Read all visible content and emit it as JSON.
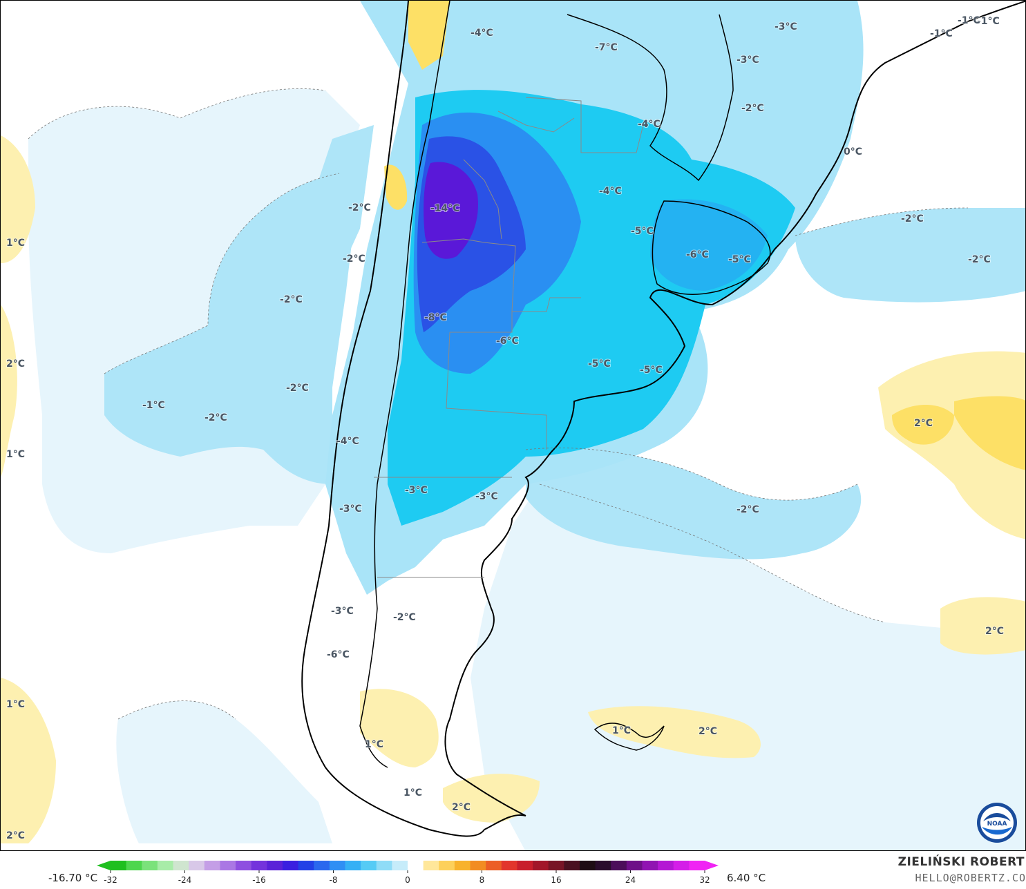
{
  "map": {
    "temperature_labels": [
      "-1°C",
      "-1°C",
      "-4°C",
      "-7°C",
      "-3°C",
      "-3°C",
      "-1°C",
      "-2°C",
      "-4°C",
      "0°C",
      "-14°C",
      "-2°C",
      "-2°C",
      "-4°C",
      "-2°C",
      "-2°C",
      "-5°C",
      "-6°C",
      "-5°C",
      "-2°C",
      "-8°C",
      "-6°C",
      "-5°C",
      "-5°C",
      "-2°C",
      "-1°C",
      "-2°C",
      "2°C",
      "-4°C",
      "-3°C",
      "-3°C",
      "-3°C",
      "-2°C",
      "-3°C",
      "-2°C",
      "-6°C",
      "1°C",
      "2°C",
      "1°C",
      "1°C",
      "2°C",
      "1°C",
      "2°C",
      "1°C",
      "2°C",
      "1°C",
      "2°C"
    ],
    "colors": {
      "ocean_light": "#e8f5fc",
      "cold_light": "#a8e3f7",
      "cold_mid": "#1ec8f0",
      "cold_deep": "#1670ea",
      "cold_extreme": "#5a18d8",
      "warm": "#fdf0b0",
      "warm_mid": "#fde066",
      "border": "#000000",
      "province": "#8a8a8a"
    }
  },
  "colorbar": {
    "min_label": "-16.70 °C",
    "max_label": "6.40 °C",
    "ticks": [
      "-32",
      "-24",
      "-16",
      "-8",
      "0",
      "8",
      "16",
      "24",
      "32"
    ],
    "colors": [
      "#1fbf1f",
      "#4ed64e",
      "#7be27b",
      "#a8eca8",
      "#cfe5cf",
      "#d8c8e8",
      "#c49ee6",
      "#aa77e4",
      "#8e4fe0",
      "#7433dc",
      "#5a22d8",
      "#3a1fe0",
      "#2240e6",
      "#2a68ee",
      "#2f8ff4",
      "#35b0f5",
      "#55cbf5",
      "#8fdcf7",
      "#c6ecfa",
      "#ffffff",
      "#ffe79a",
      "#fdd05a",
      "#f8b22c",
      "#f28c22",
      "#ec5e26",
      "#e2352c",
      "#c81e2c",
      "#a2162a",
      "#781426",
      "#4a1020",
      "#1e0c14",
      "#2a0c2c",
      "#4c0e5a",
      "#6e1088",
      "#9014b2",
      "#b418d4",
      "#d41ee8",
      "#f024f4"
    ]
  },
  "credit": {
    "name": "ZIELIŃSKI ROBERT",
    "email": "HELLO@ROBERTZ.CO"
  },
  "logo": {
    "text": "NOAA",
    "icon": "noaa-logo-icon"
  }
}
